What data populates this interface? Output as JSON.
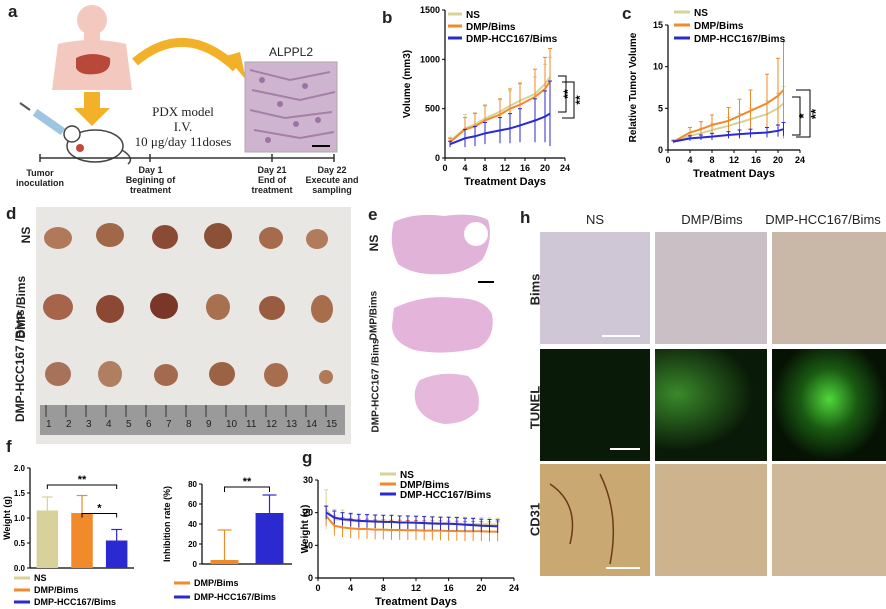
{
  "panels": {
    "a": "a",
    "b": "b",
    "c": "c",
    "d": "d",
    "e": "e",
    "f": "f",
    "g": "g",
    "h": "h"
  },
  "a": {
    "alppl2": "ALPPL2",
    "pdx_model": "PDX model",
    "iv": "I.V.",
    "dose": "10 μg/day 11doses",
    "timeline": [
      {
        "day": "",
        "label": "Tumor inoculation"
      },
      {
        "day": "Day 1",
        "label": "Begining of treatment"
      },
      {
        "day": "Day 21",
        "label": "End of treatment"
      },
      {
        "day": "Day 22",
        "label": "Execute and sampling"
      }
    ]
  },
  "legend": {
    "ns": "NS",
    "dmp": "DMP/Bims",
    "hcc": "DMP-HCC167/Bims"
  },
  "colors": {
    "ns": "#d8d29a",
    "dmp": "#f08a2a",
    "hcc": "#2a2ad0"
  },
  "d": {
    "rows": [
      "NS",
      "DMP /Bims",
      "DMP-HCC167 /Bims"
    ],
    "ruler": [
      "1",
      "2",
      "3",
      "4",
      "5",
      "6",
      "7",
      "8",
      "9",
      "10",
      "11",
      "12",
      "13",
      "14",
      "15"
    ]
  },
  "e": {
    "rows": [
      "NS",
      "DMP/Bims",
      "DMP-HCC167 /Bims"
    ]
  },
  "h": {
    "cols": [
      "NS",
      "DMP/Bims",
      "DMP-HCC167/Bims"
    ],
    "rows": [
      "Bims",
      "TUNEL",
      "CD31"
    ]
  },
  "chart_data": [
    {
      "id": "b",
      "type": "line",
      "xlabel": "Treatment Days",
      "ylabel": "Volume (mm3)",
      "xlim": [
        0,
        24
      ],
      "ylim": [
        0,
        1500
      ],
      "xticks": [
        "0",
        "4",
        "8",
        "12",
        "16",
        "20",
        "24"
      ],
      "yticks": [
        "0",
        "500",
        "1000",
        "1500"
      ],
      "significance": [
        "**",
        "**"
      ],
      "x": [
        1,
        4,
        6,
        8,
        11,
        13,
        15,
        18,
        20,
        21
      ],
      "series": [
        {
          "name": "NS",
          "values": [
            170,
            300,
            340,
            400,
            470,
            530,
            580,
            650,
            750,
            820
          ],
          "err": [
            40,
            140,
            120,
            140,
            120,
            150,
            170,
            170,
            200,
            200
          ]
        },
        {
          "name": "DMP/Bims",
          "values": [
            160,
            290,
            320,
            380,
            440,
            500,
            540,
            620,
            700,
            780
          ],
          "err": [
            40,
            120,
            130,
            150,
            160,
            200,
            220,
            280,
            320,
            330
          ]
        },
        {
          "name": "DMP-HCC167/Bims",
          "values": [
            140,
            200,
            220,
            250,
            280,
            300,
            330,
            380,
            420,
            450
          ],
          "err": [
            30,
            90,
            100,
            110,
            130,
            150,
            170,
            220,
            260,
            330
          ]
        }
      ]
    },
    {
      "id": "c",
      "type": "line",
      "xlabel": "Treatment Days",
      "ylabel": "Relative Tumor Volume",
      "xlim": [
        0,
        24
      ],
      "ylim": [
        0,
        15
      ],
      "xticks": [
        "0",
        "4",
        "8",
        "12",
        "16",
        "20",
        "24"
      ],
      "yticks": [
        "0",
        "5",
        "10",
        "15"
      ],
      "significance": [
        "*",
        "**"
      ],
      "x": [
        1,
        4,
        6,
        8,
        11,
        13,
        15,
        18,
        20,
        21
      ],
      "series": [
        {
          "name": "NS",
          "values": [
            1,
            1.7,
            2.0,
            2.4,
            2.9,
            3.3,
            3.7,
            4.3,
            5.0,
            5.6
          ],
          "err": [
            0.2,
            0.4,
            0.6,
            0.8,
            1.0,
            1.1,
            1.3,
            1.6,
            1.8,
            2.0
          ]
        },
        {
          "name": "DMP/Bims",
          "values": [
            1,
            2.1,
            2.5,
            3.0,
            3.5,
            4.1,
            4.7,
            5.6,
            6.5,
            7.2
          ],
          "err": [
            0.2,
            0.6,
            0.9,
            1.2,
            1.6,
            2.0,
            2.5,
            3.5,
            4.5,
            5.8
          ]
        },
        {
          "name": "DMP-HCC167/Bims",
          "values": [
            1,
            1.4,
            1.5,
            1.6,
            1.8,
            1.9,
            2.0,
            2.1,
            2.3,
            2.5
          ],
          "err": [
            0.1,
            0.3,
            0.3,
            0.4,
            0.4,
            0.5,
            0.5,
            0.6,
            0.7,
            0.8
          ]
        }
      ]
    },
    {
      "id": "f-weight",
      "type": "bar",
      "ylabel": "Weight (g)",
      "ylim": [
        0,
        2.0
      ],
      "yticks": [
        "0.0",
        "0.5",
        "1.0",
        "1.5",
        "2.0"
      ],
      "categories": [
        "NS",
        "DMP/Bims",
        "DMP-HCC167/Bims"
      ],
      "values": [
        1.15,
        1.1,
        0.55
      ],
      "err": [
        0.27,
        0.35,
        0.22
      ],
      "significance": [
        "**",
        "*"
      ]
    },
    {
      "id": "f-inhibition",
      "type": "bar",
      "ylabel": "Inhibition rate (%)",
      "ylim": [
        0,
        80
      ],
      "yticks": [
        "0",
        "20",
        "40",
        "60",
        "80"
      ],
      "categories": [
        "DMP/Bims",
        "DMP-HCC167/Bims"
      ],
      "values": [
        4,
        51
      ],
      "err": [
        30,
        18
      ],
      "significance": [
        "**"
      ]
    },
    {
      "id": "g",
      "type": "line",
      "xlabel": "Treatment Days",
      "ylabel": "Weight (g)",
      "xlim": [
        0,
        24
      ],
      "ylim": [
        0,
        30
      ],
      "xticks": [
        "0",
        "4",
        "8",
        "12",
        "16",
        "20",
        "24"
      ],
      "yticks": [
        "0",
        "10",
        "20",
        "30"
      ],
      "x": [
        1,
        2,
        3,
        4,
        5,
        6,
        7,
        8,
        9,
        10,
        11,
        12,
        13,
        14,
        15,
        16,
        17,
        18,
        19,
        20,
        21,
        22
      ],
      "series": [
        {
          "name": "NS",
          "values": [
            21,
            18,
            17.8,
            17.5,
            17.4,
            17.3,
            17.2,
            17.2,
            17.1,
            17.0,
            17.0,
            17.0,
            16.9,
            16.8,
            16.8,
            16.7,
            16.7,
            16.6,
            16.5,
            16.5,
            16.4,
            16.3
          ],
          "err": [
            6,
            3,
            3,
            2,
            2,
            2,
            2,
            2,
            2,
            2,
            2,
            2,
            2,
            2,
            2,
            2,
            2,
            2,
            2,
            2,
            2,
            2
          ]
        },
        {
          "name": "DMP/Bims",
          "values": [
            19,
            16,
            15.5,
            15.2,
            15,
            15,
            14.8,
            14.8,
            14.7,
            14.7,
            14.6,
            14.6,
            14.5,
            14.5,
            14.5,
            14.4,
            14.4,
            14.3,
            14.3,
            14.3,
            14.2,
            14.2
          ],
          "err": [
            3,
            3,
            3,
            3,
            3,
            3,
            3,
            3,
            3,
            3,
            3,
            3,
            3,
            3,
            3,
            3,
            3,
            3,
            3,
            3,
            3,
            3
          ]
        },
        {
          "name": "DMP-HCC167/Bims",
          "values": [
            20,
            18.5,
            18,
            17.8,
            17.5,
            17.4,
            17.3,
            17.2,
            17.2,
            17.0,
            17.0,
            16.9,
            16.8,
            16.7,
            16.6,
            16.6,
            16.5,
            16.3,
            16.2,
            16.0,
            15.9,
            15.8
          ],
          "err": [
            2,
            2,
            2,
            2,
            2,
            2,
            2,
            2,
            2,
            2,
            2,
            2,
            2,
            2,
            2,
            2,
            2,
            2,
            2,
            2,
            2,
            2
          ]
        }
      ]
    }
  ]
}
